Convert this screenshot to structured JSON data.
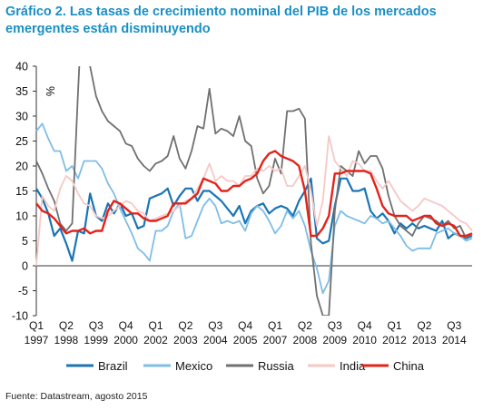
{
  "header": {
    "title": "Gráfico 2. Las tasas de crecimiento nominal del PIB de los mercados emergentes están disminuyendo"
  },
  "footer": {
    "source": "Fuente: Datastream, agosto 2015"
  },
  "chart_data": {
    "type": "line",
    "ylabel": "%",
    "ylim": [
      -10,
      40
    ],
    "yticks": [
      -10,
      -5,
      0,
      5,
      10,
      15,
      20,
      25,
      30,
      35,
      40
    ],
    "grid": false,
    "legend_position": "bottom",
    "x_start_year": 1997,
    "x_period": "quarterly",
    "x_tick_labels": [
      {
        "q": "Q1",
        "year": "1997",
        "qi": 0
      },
      {
        "q": "Q2",
        "year": "1998",
        "qi": 5
      },
      {
        "q": "Q3",
        "year": "1999",
        "qi": 10
      },
      {
        "q": "Q4",
        "year": "2000",
        "qi": 15
      },
      {
        "q": "Q1",
        "year": "2002",
        "qi": 20
      },
      {
        "q": "Q2",
        "year": "2003",
        "qi": 25
      },
      {
        "q": "Q3",
        "year": "2004",
        "qi": 30
      },
      {
        "q": "Q4",
        "year": "2005",
        "qi": 35
      },
      {
        "q": "Q1",
        "year": "2007",
        "qi": 40
      },
      {
        "q": "Q2",
        "year": "2008",
        "qi": 45
      },
      {
        "q": "Q3",
        "year": "2009",
        "qi": 50
      },
      {
        "q": "Q4",
        "year": "2010",
        "qi": 55
      },
      {
        "q": "Q1",
        "year": "2012",
        "qi": 60
      },
      {
        "q": "Q2",
        "year": "2013",
        "qi": 65
      },
      {
        "q": "Q3",
        "year": "2014",
        "qi": 70
      }
    ],
    "series": [
      {
        "name": "Brazil",
        "color": "#1a75b5",
        "width": 2.2,
        "values": [
          15.5,
          13.5,
          10.5,
          6,
          7.5,
          4.5,
          1,
          7,
          6.5,
          14.5,
          10,
          9,
          12.5,
          10.5,
          12.5,
          10,
          10.5,
          7.5,
          8,
          13.5,
          14,
          14.5,
          15.5,
          12,
          14,
          15.5,
          15.5,
          13,
          15,
          15,
          14,
          13,
          11.5,
          10,
          12,
          8.5,
          11,
          12,
          12.5,
          10.5,
          11.5,
          12,
          11.5,
          10,
          13,
          15,
          17.5,
          5.5,
          4.5,
          5,
          12,
          17.5,
          17.5,
          15,
          15,
          15.5,
          11,
          9.5,
          10.5,
          9,
          6.5,
          8.5,
          7.5,
          8.5,
          7.5,
          8,
          7.5,
          7,
          9,
          5.5,
          6.5,
          6,
          5.5,
          6
        ]
      },
      {
        "name": "Mexico",
        "color": "#7fbde6",
        "width": 1.8,
        "values": [
          27,
          28.5,
          25.5,
          23,
          23,
          19,
          20,
          17.5,
          21,
          21,
          21,
          19.5,
          16.5,
          14.5,
          11.5,
          9,
          6.5,
          3.5,
          2.5,
          1,
          7,
          7,
          8,
          11,
          12.5,
          5.5,
          6,
          9,
          12,
          13.5,
          12,
          8.5,
          9,
          8.5,
          9,
          7,
          10.5,
          12,
          11,
          9,
          6.5,
          8,
          11,
          9.5,
          11,
          8,
          3,
          -0.5,
          -5.5,
          -3,
          8,
          11,
          10,
          9.5,
          9,
          8.5,
          10,
          9.5,
          8.5,
          9,
          7.5,
          6,
          4,
          3,
          3.5,
          3.5,
          3.5,
          6.5,
          7,
          7.5,
          6.5,
          6,
          5,
          5.5
        ]
      },
      {
        "name": "Russia",
        "color": "#707070",
        "width": 1.8,
        "values": [
          21,
          18.5,
          15.5,
          13,
          8.5,
          7,
          8.5,
          35,
          60,
          40,
          34,
          31,
          29,
          28,
          27,
          24.5,
          24,
          21.5,
          20,
          19,
          20.5,
          21,
          22,
          26,
          21.5,
          19.5,
          23,
          28,
          27.5,
          35.5,
          26.5,
          27.5,
          27,
          26,
          30,
          25,
          24,
          17.5,
          14.5,
          16,
          21.5,
          18.5,
          31,
          31,
          31.5,
          29.5,
          4.5,
          -6,
          -10,
          -10,
          11,
          20,
          19,
          18,
          23,
          20.5,
          22,
          22,
          19.5,
          14,
          10,
          8,
          7,
          6,
          8.5,
          10,
          9.5,
          9,
          8,
          9,
          7.5,
          8,
          5.5,
          6.5
        ]
      },
      {
        "name": "India",
        "color": "#f5c9c6",
        "width": 1.8,
        "values": [
          0,
          14,
          12,
          11,
          15.5,
          18,
          17,
          14.5,
          12.5,
          12,
          10,
          9.5,
          10,
          11,
          12,
          13,
          12.5,
          11,
          10.5,
          9,
          9.5,
          10,
          10.5,
          11,
          12,
          13,
          13.5,
          15.5,
          17.5,
          20.5,
          17,
          18,
          17,
          17,
          16,
          18,
          18,
          19.5,
          19,
          20,
          19,
          19.5,
          16,
          16,
          18,
          20,
          15,
          8,
          13,
          26,
          21,
          19.5,
          18,
          21,
          20.5,
          19,
          19,
          17,
          15.5,
          17,
          15,
          13,
          12,
          11,
          12,
          13.5,
          13,
          12.5,
          12,
          11,
          10,
          9,
          8.5,
          7
        ]
      },
      {
        "name": "China",
        "color": "#e2231a",
        "width": 2.4,
        "values": [
          12.5,
          11,
          10.5,
          9.5,
          8,
          6.5,
          7,
          7,
          7.5,
          6.5,
          7,
          7,
          11,
          13,
          12.5,
          11.5,
          10.5,
          10.5,
          9.5,
          9,
          9,
          9.5,
          10,
          12.5,
          12.5,
          12.5,
          13.5,
          14.5,
          17.5,
          17,
          16.5,
          15,
          15,
          16,
          16,
          17,
          17.5,
          18.5,
          21,
          22.5,
          23,
          22,
          21.5,
          21,
          20,
          15,
          6,
          6,
          7.5,
          10,
          18.5,
          18.5,
          19,
          19,
          19,
          19,
          18.5,
          15.5,
          12,
          10.5,
          10,
          10,
          10,
          9,
          9.5,
          10,
          10,
          8.5,
          8,
          8.5,
          8,
          6,
          6,
          6.5
        ]
      }
    ]
  }
}
